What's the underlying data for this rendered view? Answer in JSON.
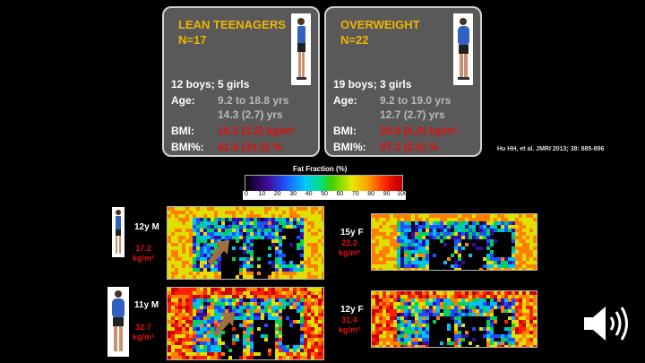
{
  "lean": {
    "title": "LEAN TEENAGERS",
    "n": "N=17",
    "sex": "12 boys; 5 girls",
    "age_label": "Age:",
    "age_range": "9.2 to 18.8 yrs",
    "age_mean": "14.3 (2.7) yrs",
    "bmi_label": "BMI:",
    "bmi_value": "19.2 (2.2) kg/m²",
    "bmip_label": "BMI%:",
    "bmip_value": "41.6 (24.3) %"
  },
  "overweight": {
    "title": "OVERWEIGHT",
    "n": "N=22",
    "sex": "19 boys; 3 girls",
    "age_label": "Age:",
    "age_range": "9.2 to 19.0 yrs",
    "age_mean": "12.7 (2.7) yrs",
    "bmi_label": "BMI:",
    "bmi_value": "29.8 (6.0) kg/m²",
    "bmip_label": "BMI%:",
    "bmip_value": "97.2 (2.6) %"
  },
  "citation": "Hu HH, et al. JMRI 2013; 38: 885-896",
  "colorbar": {
    "title": "Fat Fraction (%)",
    "ticks": [
      "0",
      "10",
      "20",
      "30",
      "40",
      "50",
      "60",
      "70",
      "80",
      "90",
      "100"
    ]
  },
  "scans": [
    {
      "age": "12y M",
      "bmi_value": "17.2",
      "bmi_unit": "kg/m²"
    },
    {
      "age": "11y M",
      "bmi_value": "32.7",
      "bmi_unit": "kg/m²"
    },
    {
      "age": "15y F",
      "bmi_value": "22.2",
      "bmi_unit": "kg/m²"
    },
    {
      "age": "12y F",
      "bmi_value": "31.4",
      "bmi_unit": "kg/m²"
    }
  ],
  "colors": {
    "title": "#f0b400",
    "bmi": "#e01010",
    "card": "#595959"
  },
  "icons": {
    "audio": "speaker-icon"
  }
}
